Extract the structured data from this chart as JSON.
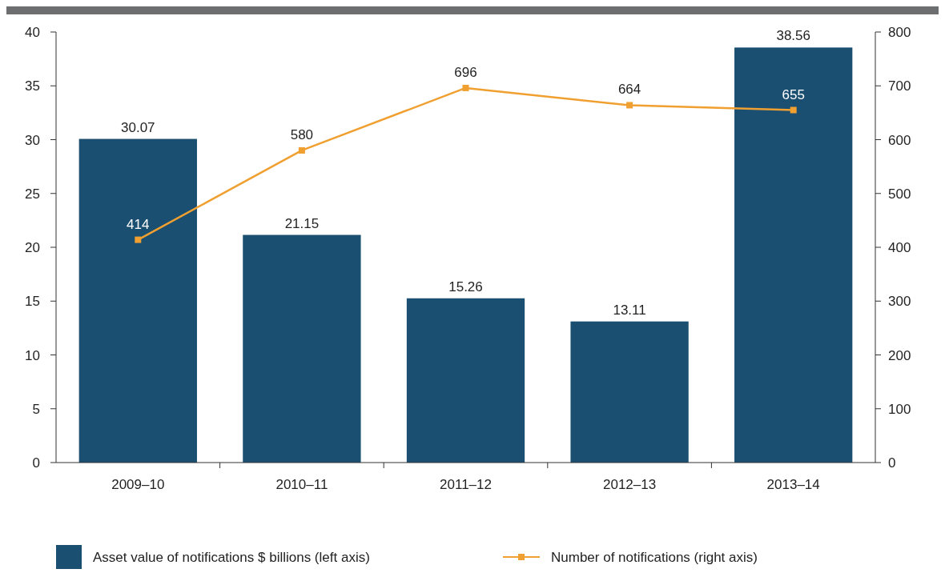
{
  "chart_data": {
    "type": "bar",
    "categories": [
      "2009–10",
      "2010–11",
      "2011–12",
      "2012–13",
      "2013–14"
    ],
    "series": [
      {
        "name": "Asset value of notifications $ billions (left axis)",
        "color": "#1b4f72",
        "values": [
          30.07,
          21.15,
          15.26,
          13.11,
          38.56
        ]
      },
      {
        "name": "Number of notifications (right axis)",
        "type": "line",
        "axis": "y2",
        "color": "#f0a030",
        "values": [
          414,
          580,
          696,
          664,
          655
        ]
      }
    ],
    "ylim": [
      0,
      40
    ],
    "yticks": [
      0,
      5,
      10,
      15,
      20,
      25,
      30,
      35,
      40
    ],
    "y2lim": [
      0,
      800
    ],
    "y2ticks": [
      0,
      100,
      200,
      300,
      400,
      500,
      600,
      700,
      800
    ],
    "data_labels": true,
    "legend": "bottom",
    "marker": "square",
    "grid": false
  }
}
